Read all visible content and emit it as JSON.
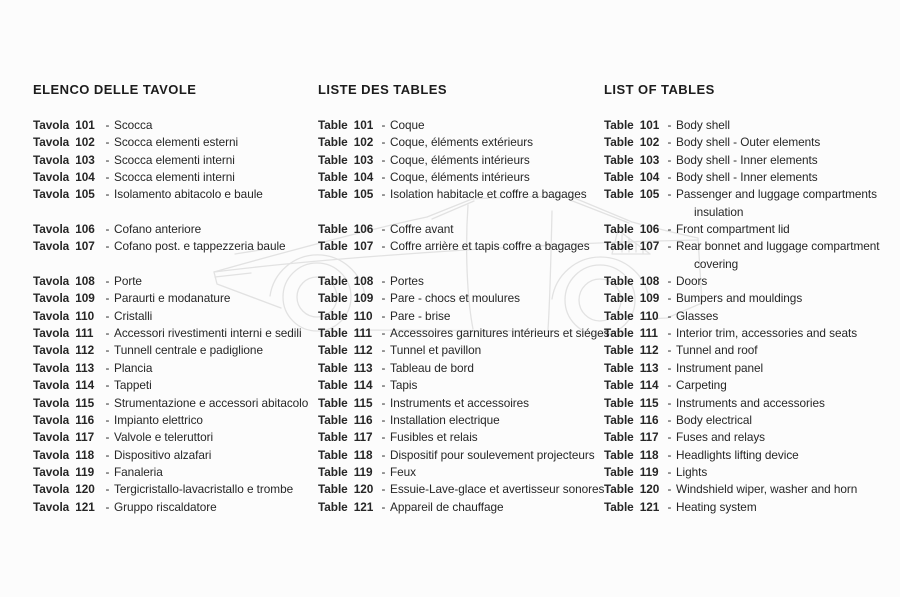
{
  "page": {
    "background": "#fcfcfc",
    "text_color": "#262626",
    "watermark_color": "#e2e2e2",
    "watermark_name": "car-side-profile-outline"
  },
  "columns": [
    {
      "id": "italian",
      "heading": "ELENCO DELLE TAVOLE",
      "label_word": "Tavola",
      "separator": "-",
      "rows": [
        {
          "n": "101",
          "d": "Scocca"
        },
        {
          "n": "102",
          "d": "Scocca elementi esterni"
        },
        {
          "n": "103",
          "d": "Scocca elementi interni"
        },
        {
          "n": "104",
          "d": "Scocca elementi interni"
        },
        {
          "n": "105",
          "d": "Isolamento abitacolo e baule"
        },
        {
          "gap": true
        },
        {
          "n": "106",
          "d": "Cofano anteriore"
        },
        {
          "n": "107",
          "d": "Cofano post. e tappezzeria baule"
        },
        {
          "gap": true
        },
        {
          "n": "108",
          "d": "Porte"
        },
        {
          "n": "109",
          "d": "Paraurti e modanature"
        },
        {
          "n": "110",
          "d": "Cristalli"
        },
        {
          "n": "111",
          "d": "Accessori rivestimenti interni e sedili"
        },
        {
          "n": "112",
          "d": "Tunnell centrale e padiglione"
        },
        {
          "n": "113",
          "d": "Plancia"
        },
        {
          "n": "114",
          "d": "Tappeti"
        },
        {
          "n": "115",
          "d": "Strumentazione e accessori abitacolo"
        },
        {
          "n": "116",
          "d": "Impianto elettrico"
        },
        {
          "n": "117",
          "d": "Valvole e teleruttori"
        },
        {
          "n": "118",
          "d": "Dispositivo alzafari"
        },
        {
          "n": "119",
          "d": "Fanaleria"
        },
        {
          "n": "120",
          "d": "Tergicristallo-lavacristallo e trombe"
        },
        {
          "n": "121",
          "d": "Gruppo riscaldatore"
        }
      ]
    },
    {
      "id": "french",
      "heading": "LISTE DES TABLES",
      "label_word": "Table",
      "separator": "-",
      "rows": [
        {
          "n": "101",
          "d": "Coque"
        },
        {
          "n": "102",
          "d": "Coque, éléments extérieurs"
        },
        {
          "n": "103",
          "d": "Coque, éléments intérieurs"
        },
        {
          "n": "104",
          "d": "Coque, éléments intérieurs"
        },
        {
          "n": "105",
          "d": "Isolation habitacle et coffre a bagages"
        },
        {
          "gap": true
        },
        {
          "n": "106",
          "d": "Coffre avant"
        },
        {
          "n": "107",
          "d": "Coffre arrière et tapis coffre a bagages"
        },
        {
          "gap": true
        },
        {
          "n": "108",
          "d": "Portes"
        },
        {
          "n": "109",
          "d": "Pare - chocs et moulures"
        },
        {
          "n": "110",
          "d": "Pare - brise"
        },
        {
          "n": "111",
          "d": "Accessoires garnitures intérieurs et siéges"
        },
        {
          "n": "112",
          "d": "Tunnel et pavillon"
        },
        {
          "n": "113",
          "d": "Tableau de bord"
        },
        {
          "n": "114",
          "d": "Tapis"
        },
        {
          "n": "115",
          "d": "Instruments et accessoires"
        },
        {
          "n": "116",
          "d": "Installation electrique"
        },
        {
          "n": "117",
          "d": "Fusibles et relais"
        },
        {
          "n": "118",
          "d": "Dispositif pour soulevement projecteurs"
        },
        {
          "n": "119",
          "d": "Feux"
        },
        {
          "n": "120",
          "d": "Essuie-Lave-glace et avertisseur sonores"
        },
        {
          "n": "121",
          "d": "Appareil de chauffage"
        }
      ]
    },
    {
      "id": "english",
      "heading": "LIST OF TABLES",
      "label_word": "Table",
      "separator": "-",
      "rows": [
        {
          "n": "101",
          "d": "Body shell"
        },
        {
          "n": "102",
          "d": "Body shell - Outer elements"
        },
        {
          "n": "103",
          "d": "Body shell - Inner elements"
        },
        {
          "n": "104",
          "d": "Body shell - Inner elements"
        },
        {
          "n": "105",
          "d": "Passenger and luggage compartments"
        },
        {
          "cont": "insulation"
        },
        {
          "n": "106",
          "d": "Front compartment lid"
        },
        {
          "n": "107",
          "d": "Rear bonnet and luggage compartment"
        },
        {
          "cont": "covering"
        },
        {
          "n": "108",
          "d": "Doors"
        },
        {
          "n": "109",
          "d": "Bumpers and mouldings"
        },
        {
          "n": "110",
          "d": "Glasses"
        },
        {
          "n": "111",
          "d": "Interior trim, accessories and seats"
        },
        {
          "n": "112",
          "d": "Tunnel and roof"
        },
        {
          "n": "113",
          "d": "Instrument panel"
        },
        {
          "n": "114",
          "d": "Carpeting"
        },
        {
          "n": "115",
          "d": "Instruments and accessories"
        },
        {
          "n": "116",
          "d": "Body electrical"
        },
        {
          "n": "117",
          "d": "Fuses and relays"
        },
        {
          "n": "118",
          "d": "Headlights lifting device"
        },
        {
          "n": "119",
          "d": "Lights"
        },
        {
          "n": "120",
          "d": "Windshield wiper, washer and horn"
        },
        {
          "n": "121",
          "d": "Heating system"
        }
      ]
    }
  ]
}
